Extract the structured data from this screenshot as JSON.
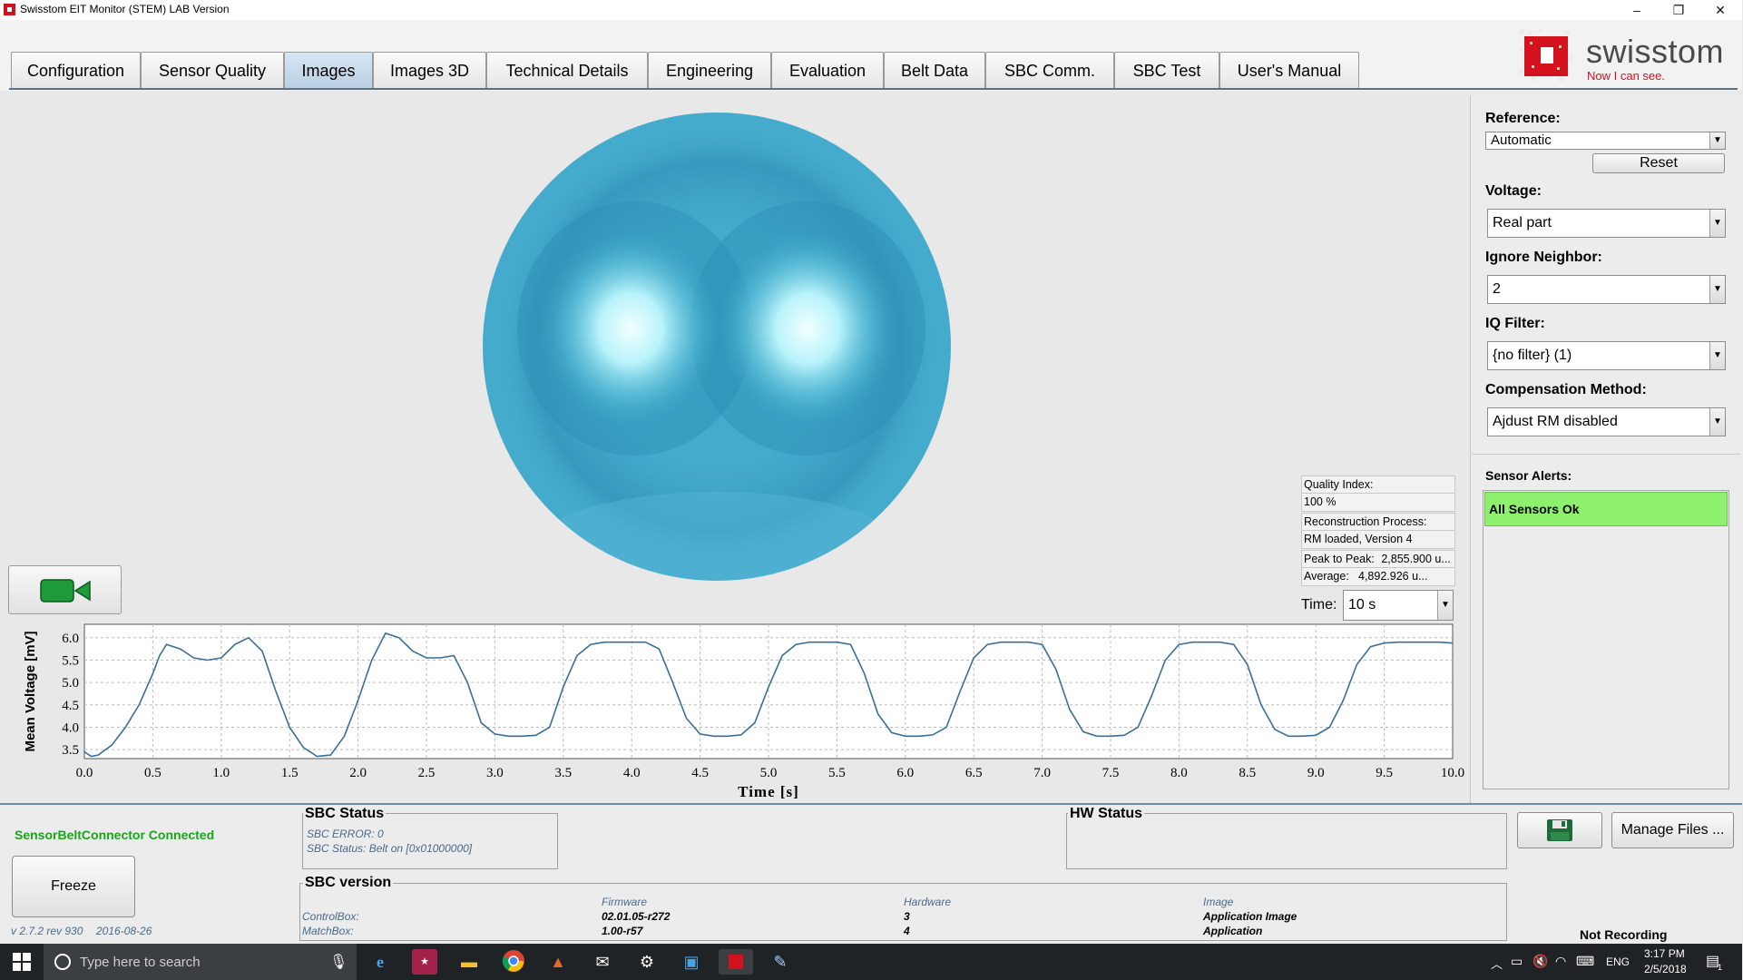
{
  "window": {
    "title": "Swisstom EIT Monitor (STEM) LAB Version",
    "minimize": "–",
    "restore": "❐",
    "close": "✕"
  },
  "tabs": [
    {
      "label": "Configuration",
      "active": false
    },
    {
      "label": "Sensor Quality",
      "active": false
    },
    {
      "label": "Images",
      "active": true
    },
    {
      "label": "Images 3D",
      "active": false
    },
    {
      "label": "Technical Details",
      "active": false
    },
    {
      "label": "Engineering",
      "active": false
    },
    {
      "label": "Evaluation",
      "active": false
    },
    {
      "label": "Belt Data",
      "active": false
    },
    {
      "label": "SBC Comm.",
      "active": false
    },
    {
      "label": "SBC Test",
      "active": false
    },
    {
      "label": "User's Manual",
      "active": false
    }
  ],
  "logo": {
    "text": "swisstom",
    "slogan": "Now I can see."
  },
  "info_panel": {
    "quality_label": "Quality Index:",
    "quality_value": "100 %",
    "recon_label": "Reconstruction Process:",
    "recon_value": "RM loaded, Version 4",
    "peak_label": "Peak to Peak:",
    "peak_value": "2,855.900 u...",
    "avg_label": "Average:",
    "avg_value": "4,892.926 u..."
  },
  "time": {
    "label": "Time:",
    "value": "10 s"
  },
  "right_panel": {
    "reference_label": "Reference:",
    "reference_value": "Automatic",
    "reset_label": "Reset",
    "voltage_label": "Voltage:",
    "voltage_value": "Real part",
    "ignore_label": "Ignore Neighbor:",
    "ignore_value": "2",
    "iq_label": "IQ Filter:",
    "iq_value": "{no filter} (1)",
    "comp_label": "Compensation Method:",
    "comp_value": "Ajdust RM disabled",
    "alerts_label": "Sensor Alerts:",
    "alert_text": "All Sensors Ok"
  },
  "bottom": {
    "connection": "SensorBeltConnector Connected",
    "freeze_label": "Freeze",
    "version": "v 2.7.2 rev 930",
    "version_date": "2016-08-26",
    "sbc_status_title": "SBC Status",
    "sbc_error": "SBC ERROR: 0",
    "sbc_status_line": "SBC Status: Belt on [0x01000000]",
    "hw_status_title": "HW Status",
    "sbc_version_title": "SBC version",
    "col_firmware": "Firmware",
    "col_hardware": "Hardware",
    "col_image": "Image",
    "row1_label": "ControlBox:",
    "row1_firmware": "02.01.05-r272",
    "row1_hardware": "3",
    "row1_image": "Application Image",
    "row2_label": "MatchBox:",
    "row2_firmware": "1.00-r57",
    "row2_hardware": "4",
    "row2_image": "Application",
    "manage_files_label": "Manage Files ...",
    "recording_status": "Not Recording"
  },
  "taskbar": {
    "search_placeholder": "Type here to search",
    "lang": "ENG",
    "time": "3:17 PM",
    "date": "2/5/2018",
    "notification_count": "1"
  },
  "colors": {
    "brand_red": "#d4121e",
    "connected_green": "#1aa51a",
    "alert_ok_green": "#8ef16e",
    "chart_line": "#3a6f95",
    "eit_base": "#3aa3c6"
  },
  "chart_data": {
    "type": "line",
    "title": "",
    "xlabel": "Time [s]",
    "ylabel": "Mean Voltage [mV]",
    "xlim": [
      0,
      10
    ],
    "ylim": [
      3.3,
      6.3
    ],
    "xticks": [
      "0.0",
      "0.5",
      "1.0",
      "1.5",
      "2.0",
      "2.5",
      "3.0",
      "3.5",
      "4.0",
      "4.5",
      "5.0",
      "5.5",
      "6.0",
      "6.5",
      "7.0",
      "7.5",
      "8.0",
      "8.5",
      "9.0",
      "9.5",
      "10.0"
    ],
    "yticks": [
      "3.5",
      "4.0",
      "4.5",
      "5.0",
      "5.5",
      "6.0"
    ],
    "grid": true,
    "series": [
      {
        "x": [
          0.0,
          0.05,
          0.1,
          0.2,
          0.3,
          0.4,
          0.5,
          0.55,
          0.6,
          0.7,
          0.8,
          0.9,
          1.0,
          1.1,
          1.2,
          1.3,
          1.4,
          1.5,
          1.6,
          1.7,
          1.8,
          1.9,
          2.0,
          2.1,
          2.2,
          2.3,
          2.4,
          2.5,
          2.6,
          2.7,
          2.8,
          2.9,
          3.0,
          3.1,
          3.2,
          3.3,
          3.4,
          3.5,
          3.6,
          3.7,
          3.8,
          3.9,
          4.0,
          4.1,
          4.2,
          4.3,
          4.4,
          4.5,
          4.6,
          4.7,
          4.8,
          4.9,
          5.0,
          5.1,
          5.2,
          5.3,
          5.4,
          5.5,
          5.6,
          5.7,
          5.8,
          5.9,
          6.0,
          6.1,
          6.2,
          6.3,
          6.4,
          6.5,
          6.6,
          6.7,
          6.8,
          6.9,
          7.0,
          7.1,
          7.2,
          7.3,
          7.4,
          7.5,
          7.6,
          7.7,
          7.8,
          7.9,
          8.0,
          8.1,
          8.2,
          8.3,
          8.4,
          8.5,
          8.6,
          8.7,
          8.8,
          8.9,
          9.0,
          9.1,
          9.2,
          9.3,
          9.4,
          9.5,
          9.6,
          9.7,
          9.8,
          9.9,
          10.0
        ],
        "y": [
          3.45,
          3.35,
          3.38,
          3.6,
          4.0,
          4.5,
          5.2,
          5.6,
          5.85,
          5.75,
          5.55,
          5.5,
          5.55,
          5.85,
          6.0,
          5.7,
          4.8,
          4.0,
          3.55,
          3.35,
          3.38,
          3.8,
          4.6,
          5.5,
          6.1,
          6.0,
          5.7,
          5.55,
          5.55,
          5.6,
          5.0,
          4.1,
          3.85,
          3.8,
          3.8,
          3.82,
          4.0,
          4.9,
          5.6,
          5.85,
          5.9,
          5.9,
          5.9,
          5.9,
          5.75,
          5.0,
          4.2,
          3.85,
          3.8,
          3.8,
          3.83,
          4.1,
          4.9,
          5.6,
          5.85,
          5.9,
          5.9,
          5.9,
          5.85,
          5.2,
          4.3,
          3.88,
          3.8,
          3.8,
          3.83,
          4.0,
          4.8,
          5.55,
          5.85,
          5.9,
          5.9,
          5.9,
          5.85,
          5.3,
          4.4,
          3.9,
          3.8,
          3.8,
          3.82,
          4.0,
          4.7,
          5.5,
          5.85,
          5.9,
          5.9,
          5.9,
          5.85,
          5.4,
          4.5,
          3.95,
          3.8,
          3.8,
          3.82,
          4.0,
          4.6,
          5.4,
          5.8,
          5.88,
          5.9,
          5.9,
          5.9,
          5.9,
          5.88
        ]
      }
    ]
  }
}
